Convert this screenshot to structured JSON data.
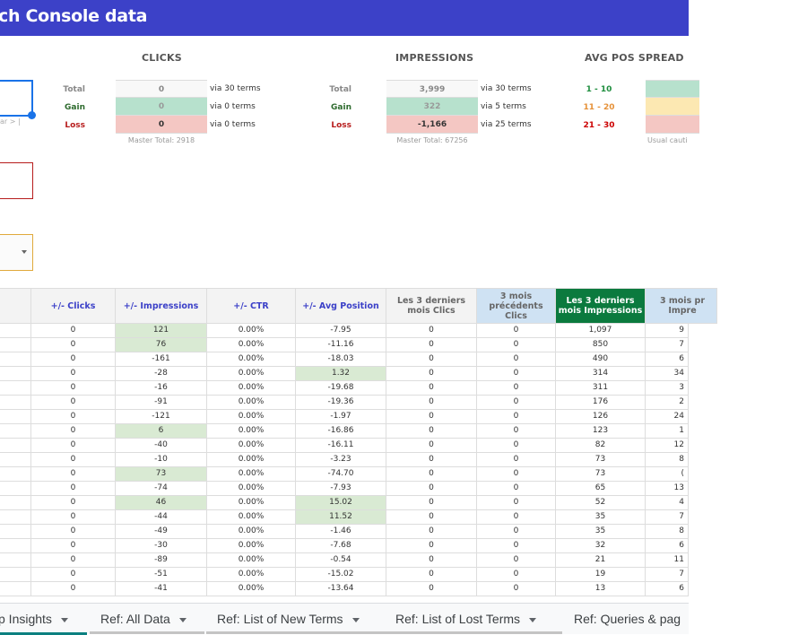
{
  "header": {
    "title": "ch Console data"
  },
  "left_controls": {
    "date_hint": "ar > |"
  },
  "clicks": {
    "title": "CLICKS",
    "rows": [
      {
        "label": "Total",
        "value": "0",
        "via": "via 30 terms"
      },
      {
        "label": "Gain",
        "value": "0",
        "via": "via 0 terms"
      },
      {
        "label": "Loss",
        "value": "0",
        "via": "via 0 terms"
      }
    ],
    "master_total": "Master Total: 2918"
  },
  "impressions": {
    "title": "IMPRESSIONS",
    "rows": [
      {
        "label": "Total",
        "value": "3,999",
        "via": "via 30 terms"
      },
      {
        "label": "Gain",
        "value": "322",
        "via": "via 5 terms"
      },
      {
        "label": "Loss",
        "value": "-1,166",
        "via": "via 25 terms"
      }
    ],
    "master_total": "Master Total: 67256"
  },
  "avg_pos_spread": {
    "title": "AVG POS SPREAD",
    "ranges": [
      {
        "label": "1 - 10",
        "color": "#1e8e3e"
      },
      {
        "label": "11 - 20",
        "color": "#e69138"
      },
      {
        "label": "21 - 30",
        "color": "#cc0000"
      }
    ],
    "note": "Usual cauti"
  },
  "table": {
    "headers": [
      "",
      "+/- Clicks",
      "+/- Impressions",
      "+/- CTR",
      "+/- Avg Position",
      "Les 3 derniers mois Clics",
      "3 mois précédents Clics",
      "Les 3 derniers mois Impressions",
      "3 mois pr Impre"
    ],
    "rows": [
      [
        "",
        "0",
        "121",
        "0.00%",
        "-7.95",
        "0",
        "0",
        "1,097",
        "9"
      ],
      [
        "",
        "0",
        "76",
        "0.00%",
        "-11.16",
        "0",
        "0",
        "850",
        "7"
      ],
      [
        "",
        "0",
        "-161",
        "0.00%",
        "-18.03",
        "0",
        "0",
        "490",
        "6"
      ],
      [
        "",
        "0",
        "-28",
        "0.00%",
        "1.32",
        "0",
        "0",
        "314",
        "34"
      ],
      [
        "",
        "0",
        "-16",
        "0.00%",
        "-19.68",
        "0",
        "0",
        "311",
        "3"
      ],
      [
        "",
        "0",
        "-91",
        "0.00%",
        "-19.36",
        "0",
        "0",
        "176",
        "2"
      ],
      [
        "",
        "0",
        "-121",
        "0.00%",
        "-1.97",
        "0",
        "0",
        "126",
        "24"
      ],
      [
        "",
        "0",
        "6",
        "0.00%",
        "-16.86",
        "0",
        "0",
        "123",
        "1"
      ],
      [
        "",
        "0",
        "-40",
        "0.00%",
        "-16.11",
        "0",
        "0",
        "82",
        "12"
      ],
      [
        "",
        "0",
        "-10",
        "0.00%",
        "-3.23",
        "0",
        "0",
        "73",
        "8"
      ],
      [
        "",
        "0",
        "73",
        "0.00%",
        "-74.70",
        "0",
        "0",
        "73",
        "("
      ],
      [
        "",
        "0",
        "-74",
        "0.00%",
        "-7.93",
        "0",
        "0",
        "65",
        "13"
      ],
      [
        "",
        "0",
        "46",
        "0.00%",
        "15.02",
        "0",
        "0",
        "52",
        "4"
      ],
      [
        "",
        "0",
        "-44",
        "0.00%",
        "11.52",
        "0",
        "0",
        "35",
        "7"
      ],
      [
        "",
        "0",
        "-49",
        "0.00%",
        "-1.46",
        "0",
        "0",
        "35",
        "8"
      ],
      [
        "",
        "0",
        "-30",
        "0.00%",
        "-7.68",
        "0",
        "0",
        "32",
        "6"
      ],
      [
        "",
        "0",
        "-89",
        "0.00%",
        "-0.54",
        "0",
        "0",
        "21",
        "11"
      ],
      [
        "",
        "0",
        "-51",
        "0.00%",
        "-15.02",
        "0",
        "0",
        "19",
        "7"
      ],
      [
        "",
        "0",
        "-41",
        "0.00%",
        "-13.64",
        "0",
        "0",
        "13",
        "6"
      ]
    ],
    "highlighted": [
      [
        0,
        2
      ],
      [
        1,
        2
      ],
      [
        3,
        4
      ],
      [
        7,
        2
      ],
      [
        10,
        2
      ],
      [
        12,
        2
      ],
      [
        12,
        4
      ],
      [
        13,
        4
      ]
    ]
  },
  "tabs": [
    {
      "label": "p Insights",
      "active": true
    },
    {
      "label": "Ref: All Data",
      "active": false
    },
    {
      "label": "Ref: List of New Terms",
      "active": false
    },
    {
      "label": "Ref: List of Lost Terms",
      "active": false
    },
    {
      "label": "Ref: Queries & pag",
      "active": false
    }
  ]
}
